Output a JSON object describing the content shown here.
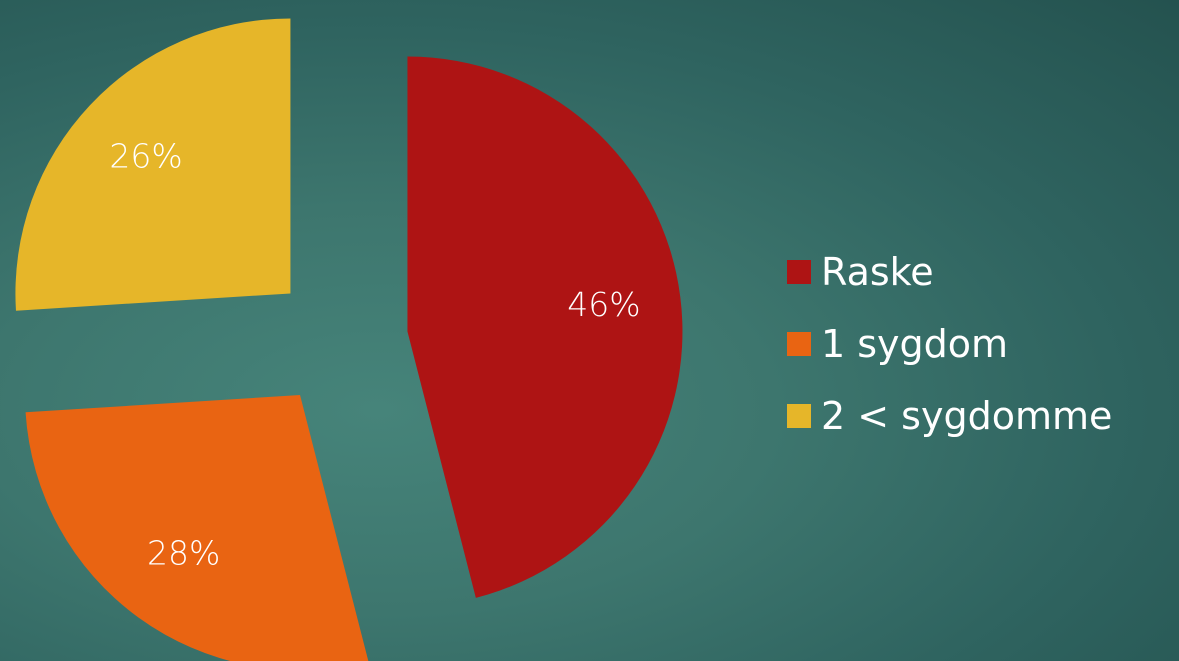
{
  "chart_data": {
    "type": "pie",
    "title": "",
    "slices": [
      {
        "name": "Raske",
        "value": 46,
        "label": "46%",
        "color": "#ae1414"
      },
      {
        "name": "1 sygdom",
        "value": 28,
        "label": "28%",
        "color": "#e96412"
      },
      {
        "name": "2 < sygdomme",
        "value": 26,
        "label": "26%",
        "color": "#e6b629"
      }
    ],
    "legend": {
      "position": "right",
      "items": [
        {
          "label": "Raske",
          "color": "#ae1414"
        },
        {
          "label": "1 sygdom",
          "color": "#e96412"
        },
        {
          "label": "2 < sygdomme",
          "color": "#e6b629"
        }
      ]
    },
    "exploded": true,
    "start_angle": "top",
    "direction": "clockwise"
  }
}
